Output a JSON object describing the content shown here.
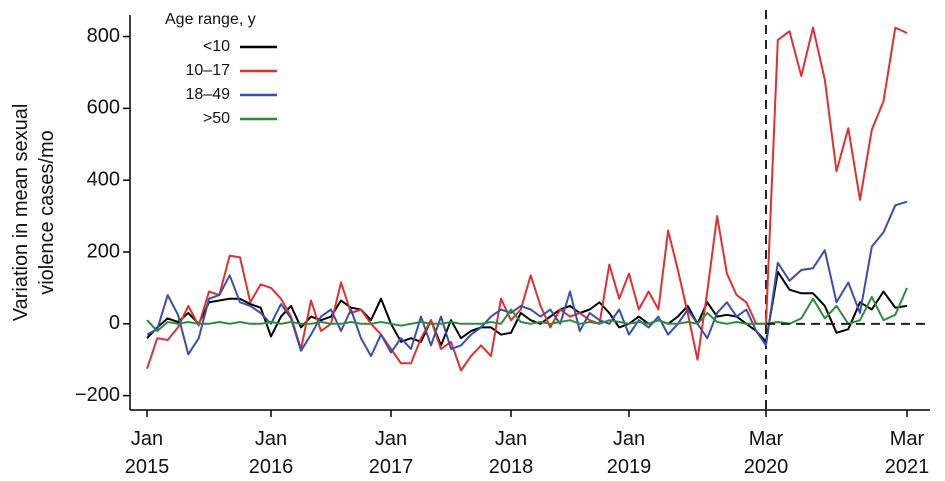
{
  "chart_data": {
    "type": "line",
    "y_label": [
      "Variation in mean sexual",
      "violence cases/mo"
    ],
    "legend_title": "Age range, y",
    "legend": "top-left",
    "x": [
      "2015-01",
      "2015-02",
      "2015-03",
      "2015-04",
      "2015-05",
      "2015-06",
      "2015-07",
      "2015-08",
      "2015-09",
      "2015-10",
      "2015-11",
      "2015-12",
      "2016-01",
      "2016-02",
      "2016-03",
      "2016-04",
      "2016-05",
      "2016-06",
      "2016-07",
      "2016-08",
      "2016-09",
      "2016-10",
      "2016-11",
      "2016-12",
      "2017-01",
      "2017-02",
      "2017-03",
      "2017-04",
      "2017-05",
      "2017-06",
      "2017-07",
      "2017-08",
      "2017-09",
      "2017-10",
      "2017-11",
      "2017-12",
      "2018-01",
      "2018-02",
      "2018-03",
      "2018-04",
      "2018-05",
      "2018-06",
      "2018-07",
      "2018-08",
      "2018-09",
      "2018-10",
      "2018-11",
      "2018-12",
      "2019-01",
      "2019-02",
      "2019-03",
      "2019-04",
      "2019-05",
      "2019-06",
      "2019-07",
      "2019-08",
      "2019-09",
      "2019-10",
      "2019-11",
      "2019-12",
      "2020-01",
      "2020-02",
      "2020-03",
      "2020-04",
      "2020-05",
      "2020-06",
      "2020-07",
      "2020-08",
      "2020-09",
      "2020-10",
      "2020-11",
      "2020-12",
      "2021-01",
      "2021-02",
      "2021-03"
    ],
    "series": [
      {
        "name": "<10",
        "color": "#000000",
        "values": [
          -40,
          -10,
          15,
          5,
          30,
          0,
          60,
          65,
          70,
          70,
          55,
          45,
          -35,
          20,
          50,
          -10,
          20,
          10,
          20,
          65,
          45,
          40,
          10,
          70,
          0,
          -50,
          -40,
          -50,
          10,
          -60,
          10,
          -40,
          -20,
          -10,
          -10,
          -30,
          -25,
          30,
          10,
          0,
          20,
          40,
          50,
          30,
          40,
          60,
          30,
          -10,
          0,
          20,
          0,
          10,
          0,
          20,
          50,
          0,
          60,
          20,
          25,
          20,
          0,
          -20,
          -50,
          145,
          95,
          85,
          85,
          50,
          -25,
          -15,
          60,
          40,
          90,
          45,
          50
        ]
      },
      {
        "name": "10–17",
        "color": "#e0302e",
        "values": [
          -125,
          -40,
          -45,
          -10,
          50,
          -5,
          90,
          80,
          190,
          185,
          60,
          110,
          100,
          70,
          20,
          -70,
          65,
          -20,
          0,
          115,
          30,
          40,
          0,
          -30,
          -70,
          -110,
          -110,
          -40,
          10,
          -70,
          -50,
          -130,
          -90,
          -60,
          -90,
          70,
          10,
          40,
          135,
          50,
          -10,
          40,
          20,
          30,
          10,
          0,
          165,
          70,
          140,
          40,
          90,
          40,
          260,
          150,
          30,
          -100,
          90,
          300,
          140,
          80,
          60,
          0,
          0,
          790,
          815,
          690,
          825,
          680,
          425,
          545,
          345,
          540,
          620,
          825,
          810
        ]
      },
      {
        "name": "18–49",
        "color": "#3a4fa8",
        "values": [
          -30,
          -15,
          80,
          25,
          -85,
          -40,
          70,
          80,
          135,
          60,
          50,
          30,
          0,
          55,
          15,
          -75,
          -30,
          20,
          40,
          -20,
          40,
          -40,
          -90,
          -30,
          -80,
          -40,
          -70,
          20,
          -60,
          20,
          -70,
          -60,
          -30,
          -10,
          20,
          40,
          30,
          50,
          40,
          20,
          40,
          0,
          90,
          -20,
          30,
          10,
          0,
          40,
          -30,
          10,
          -10,
          20,
          -30,
          0,
          40,
          0,
          -40,
          30,
          60,
          20,
          40,
          -20,
          -60,
          170,
          120,
          150,
          155,
          205,
          60,
          115,
          30,
          215,
          255,
          330,
          340
        ]
      },
      {
        "name": ">50",
        "color": "#2e8b3e",
        "values": [
          10,
          -20,
          5,
          0,
          5,
          0,
          0,
          5,
          0,
          5,
          0,
          0,
          5,
          0,
          5,
          0,
          0,
          5,
          0,
          0,
          5,
          0,
          0,
          5,
          0,
          -5,
          0,
          5,
          0,
          0,
          5,
          0,
          0,
          0,
          5,
          0,
          40,
          5,
          0,
          5,
          0,
          5,
          10,
          0,
          5,
          0,
          10,
          5,
          0,
          5,
          0,
          10,
          0,
          0,
          5,
          0,
          30,
          5,
          0,
          5,
          0,
          0,
          0,
          5,
          0,
          15,
          70,
          15,
          50,
          0,
          10,
          75,
          10,
          25,
          100
        ]
      }
    ],
    "xticks": [
      {
        "value": "2015-01",
        "label": "Jan 2015"
      },
      {
        "value": "2016-01",
        "label": "Jan 2016"
      },
      {
        "value": "2017-01",
        "label": "Jan 2017"
      },
      {
        "value": "2018-01",
        "label": "Jan 2018"
      },
      {
        "value": "2019-01",
        "label": "Jan 2019"
      },
      {
        "value": "2020-03",
        "label": "Mar 2020"
      },
      {
        "value": "2021-03",
        "label": "Mar 2021"
      }
    ],
    "ylim": [
      -240,
      860
    ],
    "yticks": [
      {
        "value": -200,
        "label": "−200"
      },
      0,
      200,
      400,
      600,
      800
    ],
    "vline": "2020-03",
    "hline": 0
  }
}
